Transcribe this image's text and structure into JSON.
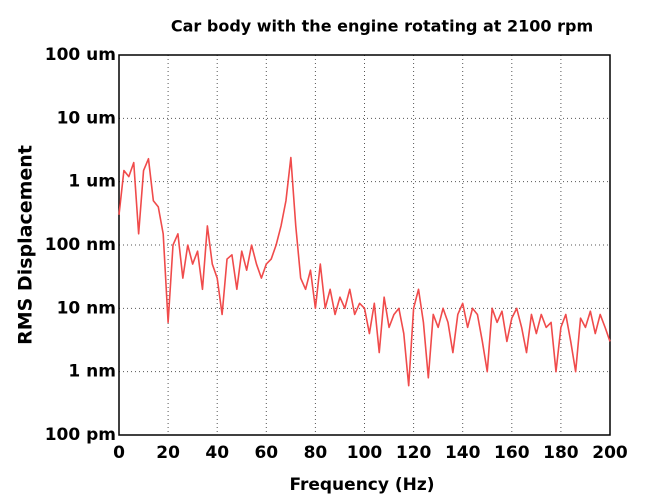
{
  "chart_data": {
    "type": "line",
    "title": "Car body with the engine rotating at 2100 rpm",
    "xlabel": "Frequency (Hz)",
    "ylabel": "RMS Displacement",
    "x": [
      0,
      2,
      4,
      6,
      8,
      10,
      12,
      14,
      16,
      18,
      20,
      22,
      24,
      26,
      28,
      30,
      32,
      34,
      36,
      38,
      40,
      42,
      44,
      46,
      48,
      50,
      52,
      54,
      56,
      58,
      60,
      62,
      64,
      66,
      68,
      70,
      72,
      74,
      76,
      78,
      80,
      82,
      84,
      86,
      88,
      90,
      92,
      94,
      96,
      98,
      100,
      102,
      104,
      106,
      108,
      110,
      112,
      114,
      116,
      118,
      120,
      122,
      124,
      126,
      128,
      130,
      132,
      134,
      136,
      138,
      140,
      142,
      144,
      146,
      148,
      150,
      152,
      154,
      156,
      158,
      160,
      162,
      164,
      166,
      168,
      170,
      172,
      174,
      176,
      178,
      180,
      182,
      184,
      186,
      188,
      190,
      192,
      194,
      196,
      198,
      200
    ],
    "series": [
      {
        "name": "RMS Displacement",
        "color": "#f04b4b",
        "values": [
          0.3,
          1.5,
          1.2,
          2,
          0.15,
          1.5,
          2.3,
          0.5,
          0.4,
          0.15,
          0.006,
          0.1,
          0.15,
          0.03,
          0.1,
          0.05,
          0.08,
          0.02,
          0.2,
          0.05,
          0.03,
          0.008,
          0.06,
          0.07,
          0.02,
          0.08,
          0.04,
          0.1,
          0.05,
          0.03,
          0.05,
          0.06,
          0.1,
          0.2,
          0.5,
          2.4,
          0.2,
          0.03,
          0.02,
          0.04,
          0.01,
          0.05,
          0.01,
          0.02,
          0.008,
          0.015,
          0.01,
          0.02,
          0.008,
          0.012,
          0.01,
          0.004,
          0.012,
          0.002,
          0.015,
          0.005,
          0.008,
          0.01,
          0.004,
          0.0006,
          0.01,
          0.02,
          0.006,
          0.0008,
          0.008,
          0.005,
          0.01,
          0.006,
          0.002,
          0.008,
          0.012,
          0.005,
          0.01,
          0.008,
          0.003,
          0.001,
          0.01,
          0.006,
          0.009,
          0.003,
          0.007,
          0.01,
          0.005,
          0.002,
          0.008,
          0.004,
          0.008,
          0.005,
          0.006,
          0.001,
          0.005,
          0.008,
          0.003,
          0.001,
          0.007,
          0.005,
          0.009,
          0.004,
          0.008,
          0.005,
          0.003
        ]
      }
    ],
    "xlim": [
      0,
      200
    ],
    "xticks": [
      0,
      20,
      40,
      60,
      80,
      100,
      120,
      140,
      160,
      180,
      200
    ],
    "ylim": [
      0.0001,
      100
    ],
    "yticks": [
      {
        "value": 0.0001,
        "label": "100 pm"
      },
      {
        "value": 0.001,
        "label": "1 nm"
      },
      {
        "value": 0.01,
        "label": "10 nm"
      },
      {
        "value": 0.1,
        "label": "100 nm"
      },
      {
        "value": 1,
        "label": "1 um"
      },
      {
        "value": 10,
        "label": "10 um"
      },
      {
        "value": 100,
        "label": "100 um"
      }
    ],
    "yscale": "log",
    "grid": true
  }
}
